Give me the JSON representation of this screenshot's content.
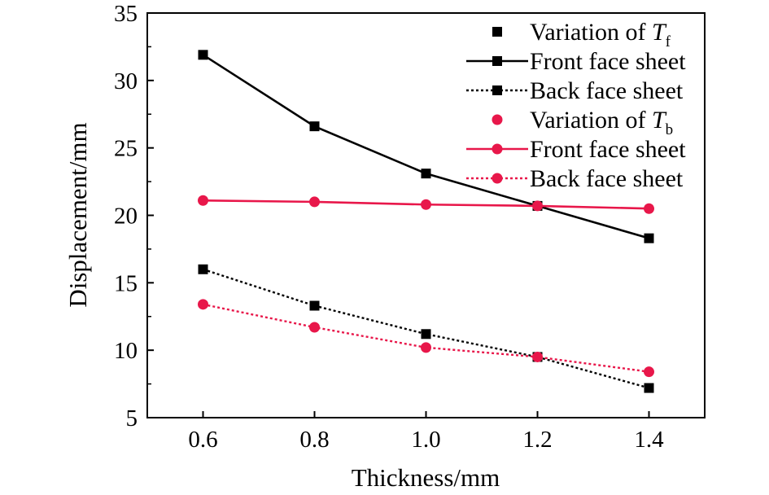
{
  "chart_data": {
    "type": "line",
    "xlabel": "Thickness/mm",
    "ylabel": "Displacement/mm",
    "x": [
      0.6,
      0.8,
      1.0,
      1.2,
      1.4
    ],
    "x_ticks": [
      "0.6",
      "0.8",
      "1.0",
      "1.2",
      "1.4"
    ],
    "xlim": [
      0.5,
      1.5
    ],
    "ylim": [
      5,
      35
    ],
    "y_ticks": [
      "5",
      "10",
      "15",
      "20",
      "25",
      "30",
      "35"
    ],
    "grid": false,
    "legend_position": "top-right",
    "legend": [
      {
        "type": "header",
        "label": "Variation of ",
        "symbol": "T",
        "subscript": "f",
        "color": "#000000",
        "marker": "square"
      },
      {
        "type": "series",
        "series_index": 0
      },
      {
        "type": "series",
        "series_index": 1
      },
      {
        "type": "header",
        "label": "Variation of ",
        "symbol": "T",
        "subscript": "b",
        "color": "#e8174a",
        "marker": "circle"
      },
      {
        "type": "series",
        "series_index": 2
      },
      {
        "type": "series",
        "series_index": 3
      }
    ],
    "series": [
      {
        "name": "Front face sheet",
        "group": "Variation of Tf",
        "values": [
          31.9,
          26.6,
          23.1,
          20.7,
          18.3
        ],
        "color": "#000000",
        "marker": "square",
        "line": "solid"
      },
      {
        "name": "Back face sheet",
        "group": "Variation of Tf",
        "values": [
          16.0,
          13.3,
          11.2,
          9.5,
          7.2
        ],
        "color": "#000000",
        "marker": "square",
        "line": "dotted"
      },
      {
        "name": "Front face sheet",
        "group": "Variation of Tb",
        "values": [
          21.1,
          21.0,
          20.8,
          20.7,
          20.5
        ],
        "color": "#e8174a",
        "marker": "circle",
        "line": "solid"
      },
      {
        "name": "Back face sheet",
        "group": "Variation of Tb",
        "values": [
          13.4,
          11.7,
          10.2,
          9.5,
          8.4
        ],
        "color": "#e8174a",
        "marker": "circle",
        "line": "dotted"
      }
    ]
  }
}
